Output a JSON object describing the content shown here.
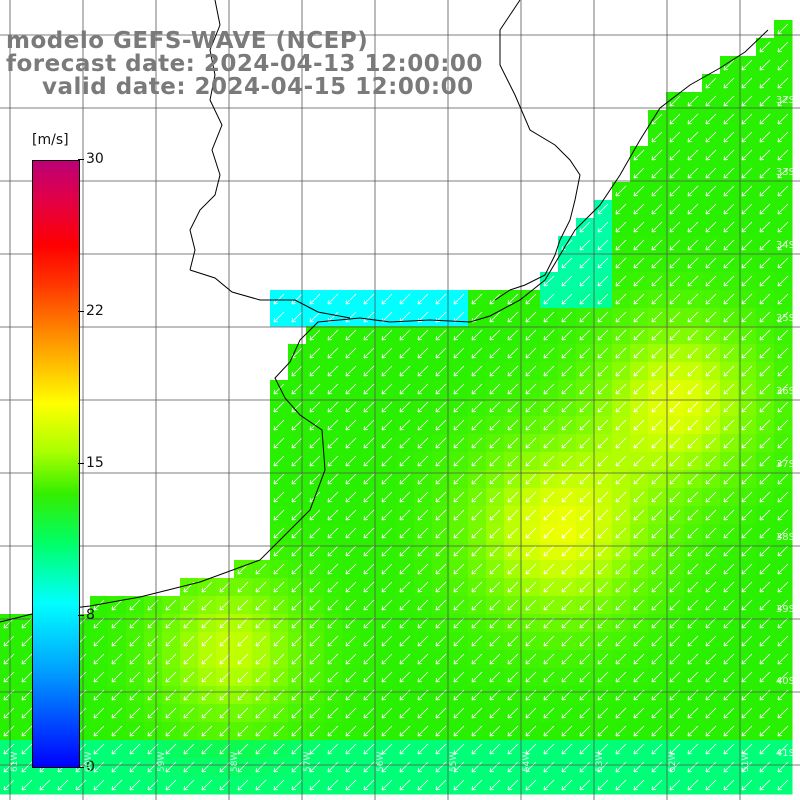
{
  "title": {
    "line1": "modelo GEFS-WAVE (NCEP)",
    "line2": "forecast date: 2024-04-13 12:00:00",
    "line3": "valid date: 2024-04-15 12:00:00"
  },
  "colorbar": {
    "unit": "[m/s]",
    "ticks": [
      "30",
      "22",
      "15",
      "8",
      "0"
    ],
    "colors": [
      "#0000ff",
      "#00aaff",
      "#00ffff",
      "#00ff66",
      "#33ee00",
      "#aaff00",
      "#ffff00",
      "#ff9900",
      "#ff3300",
      "#ff0000",
      "#bb0077"
    ]
  },
  "axes": {
    "lat_labels": [
      "32S",
      "33S",
      "34S",
      "35S",
      "36S",
      "37S",
      "38S",
      "39S",
      "40S",
      "41S"
    ],
    "lon_labels": [
      "61W",
      "60W",
      "59W",
      "58W",
      "57W",
      "56W",
      "55W",
      "54W",
      "53W",
      "52W",
      "51W"
    ]
  },
  "wind_field": {
    "direction": "from NE toward SW",
    "max_speed_area": "offshore, ~14-15 m/s",
    "coastal_min": "~6-7 m/s"
  }
}
